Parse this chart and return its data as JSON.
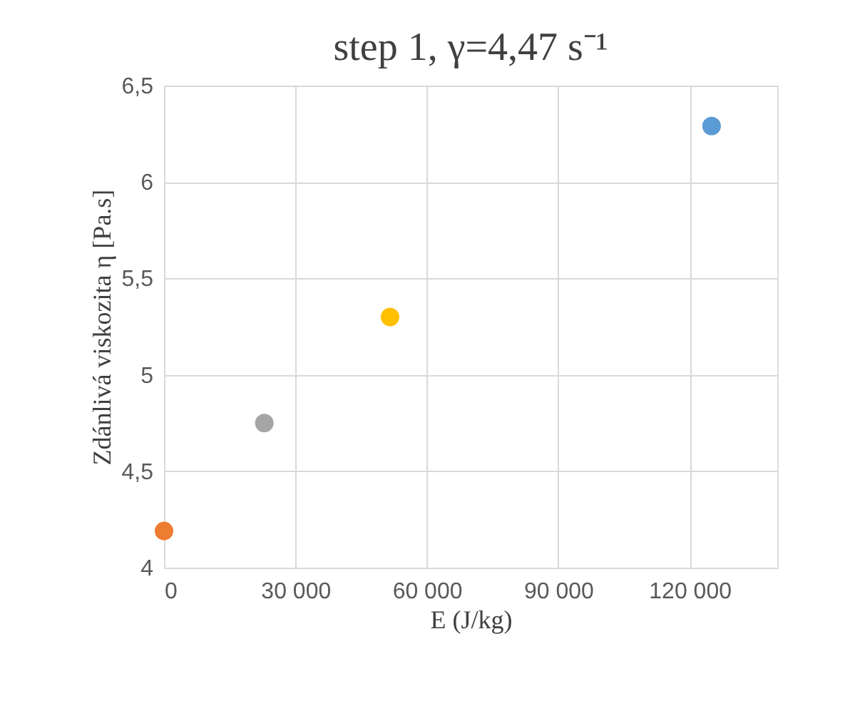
{
  "chart_data": {
    "type": "scatter",
    "title": "step 1, γ=4,47 s⁻¹",
    "xlabel": "E (J/kg)",
    "ylabel": "Zdánlivá viskozita η [Pa.s]",
    "x": [
      125000,
      51600,
      22900,
      0
    ],
    "values": [
      6.29,
      5.3,
      4.75,
      4.19
    ],
    "colors": [
      "#5b9bd5",
      "#ffc000",
      "#a5a5a5",
      "#ed7d31"
    ],
    "xlim": [
      0,
      140000
    ],
    "xticks": [
      0,
      {
        "value": 30000,
        "label": "30 000"
      },
      {
        "value": 60000,
        "label": "60 000"
      },
      {
        "value": 90000,
        "label": "90 000"
      },
      {
        "value": 120000,
        "label": "120 000"
      }
    ],
    "ylim": [
      4,
      6.5
    ],
    "yticks": [
      4,
      {
        "value": 4.5,
        "label": "4,5"
      },
      5,
      {
        "value": 5.5,
        "label": "5,5"
      },
      6,
      {
        "value": 6.5,
        "label": "6,5"
      }
    ],
    "grid": true,
    "marker": "circle"
  }
}
